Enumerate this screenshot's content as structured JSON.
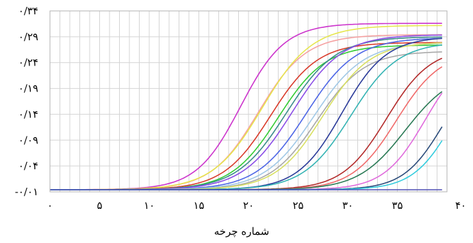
{
  "chart_data": {
    "type": "line",
    "xlabel": "شماره چرخه",
    "ylabel": "",
    "title": "",
    "xlim": [
      0,
      40
    ],
    "ylim": [
      -0.01,
      0.34
    ],
    "grid": true,
    "legend": "none",
    "x_ticks": [
      0,
      5,
      10,
      15,
      20,
      25,
      30,
      35,
      40
    ],
    "x_tick_labels": [
      "۰",
      "۵",
      "۱۰",
      "۱۵",
      "۲۰",
      "۲۵",
      "۳۰",
      "۳۵",
      "۴۰"
    ],
    "y_ticks": [
      -0.01,
      0.04,
      0.09,
      0.14,
      0.19,
      0.24,
      0.29,
      0.34
    ],
    "y_tick_labels": [
      "-۰/۰۱",
      "۰/۰۴",
      "۰/۰۹",
      "۰/۱۴",
      "۰/۱۹",
      "۰/۲۴",
      "۰/۲۹",
      "۰/۳۴"
    ],
    "baseline": -0.006,
    "series": [
      {
        "color": "#cc33cc",
        "ct": 19.2,
        "plateau": 0.322,
        "k": 0.45
      },
      {
        "color": "#f5a0a0",
        "ct": 21.0,
        "plateau": 0.3,
        "k": 0.42
      },
      {
        "color": "#e6e64d",
        "ct": 21.4,
        "plateau": 0.318,
        "k": 0.4
      },
      {
        "color": "#d93a2a",
        "ct": 22.2,
        "plateau": 0.285,
        "k": 0.42
      },
      {
        "color": "#33cc33",
        "ct": 23.0,
        "plateau": 0.28,
        "k": 0.42
      },
      {
        "color": "#3a8c8c",
        "ct": 23.8,
        "plateau": 0.296,
        "k": 0.4
      },
      {
        "color": "#8a4de6",
        "ct": 24.4,
        "plateau": 0.3,
        "k": 0.4
      },
      {
        "color": "#4d66e6",
        "ct": 25.8,
        "plateau": 0.294,
        "k": 0.4
      },
      {
        "color": "#a0c8e6",
        "ct": 26.6,
        "plateau": 0.285,
        "k": 0.4
      },
      {
        "color": "#a8a8a8",
        "ct": 26.9,
        "plateau": 0.268,
        "k": 0.42
      },
      {
        "color": "#d8e060",
        "ct": 27.5,
        "plateau": 0.286,
        "k": 0.42
      },
      {
        "color": "#2a3a99",
        "ct": 29.4,
        "plateau": 0.296,
        "k": 0.45
      },
      {
        "color": "#33b3b3",
        "ct": 30.3,
        "plateau": 0.286,
        "k": 0.42
      },
      {
        "color": "#b32a2a",
        "ct": 33.9,
        "plateau": 0.275,
        "k": 0.45
      },
      {
        "color": "#f06a6a",
        "ct": 34.9,
        "plateau": 0.268,
        "k": 0.45
      },
      {
        "color": "#2a7a55",
        "ct": 35.8,
        "plateau": 0.23,
        "k": 0.42
      },
      {
        "color": "#e06adc",
        "ct": 37.8,
        "plateau": 0.27,
        "k": 0.48
      },
      {
        "color": "#2a4b7a",
        "ct": 39.6,
        "plateau": 0.25,
        "k": 0.5
      },
      {
        "color": "#33ccdd",
        "ct": 40.6,
        "plateau": 0.26,
        "k": 0.5
      },
      {
        "color": "#4d4db3",
        "ct": 60.0,
        "plateau": 0.004,
        "k": 0.4
      }
    ]
  }
}
